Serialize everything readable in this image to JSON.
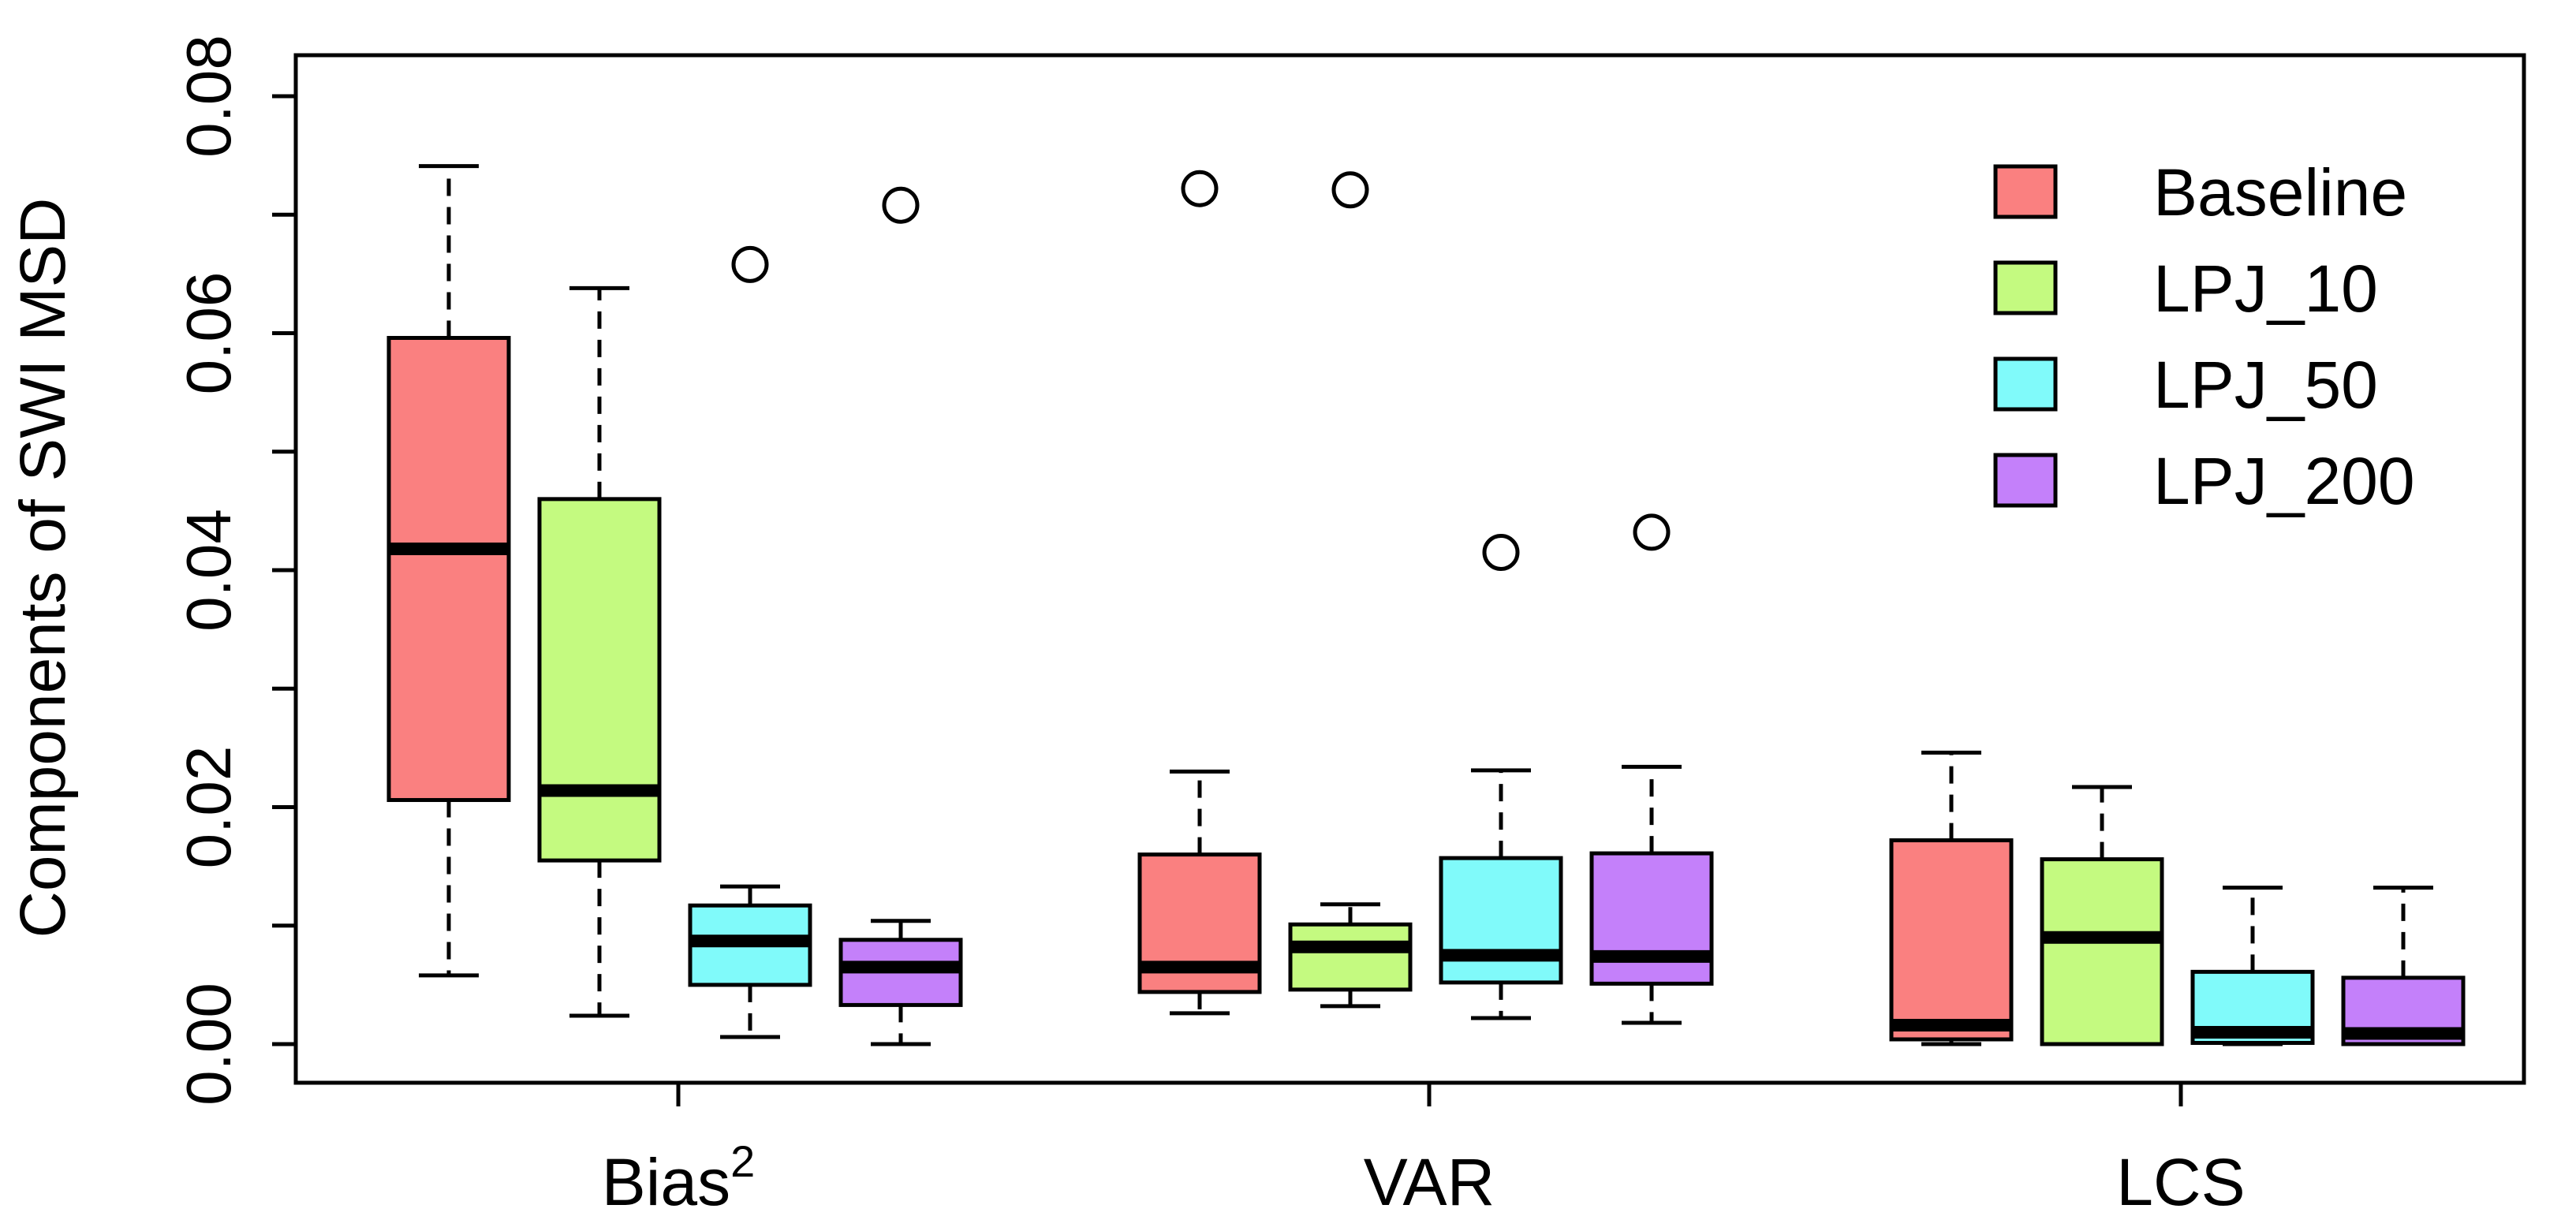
{
  "chart_data": {
    "type": "boxplot",
    "title": "",
    "xlabel": "",
    "ylabel": "Components of SWI MSD",
    "ylim": [
      0,
      0.08
    ],
    "yticks": [
      0.0,
      0.02,
      0.04,
      0.06,
      0.08
    ],
    "ytick_labels": [
      "0.00",
      "0.02",
      "0.04",
      "0.06",
      "0.08"
    ],
    "groups": [
      {
        "label_main": "Bias",
        "label_sup": "2"
      },
      {
        "label_main": "VAR",
        "label_sup": ""
      },
      {
        "label_main": "LCS",
        "label_sup": ""
      }
    ],
    "series": [
      {
        "name": "Baseline",
        "color": "#fa8080"
      },
      {
        "name": "LPJ_10",
        "color": "#c4fa80"
      },
      {
        "name": "LPJ_50",
        "color": "#80fafa"
      },
      {
        "name": "LPJ_200",
        "color": "#c480fa"
      }
    ],
    "boxes": [
      [
        {
          "min": 0.0058,
          "q1": 0.0206,
          "median": 0.0418,
          "q3": 0.0596,
          "max": 0.0741,
          "outliers": []
        },
        {
          "min": 0.0024,
          "q1": 0.0155,
          "median": 0.0214,
          "q3": 0.046,
          "max": 0.0638,
          "outliers": []
        },
        {
          "min": 0.0006,
          "q1": 0.005,
          "median": 0.0087,
          "q3": 0.0117,
          "max": 0.0133,
          "outliers": [
            0.0658
          ]
        },
        {
          "min": 0.0,
          "q1": 0.0033,
          "median": 0.0065,
          "q3": 0.0088,
          "max": 0.0104,
          "outliers": [
            0.0708
          ]
        }
      ],
      [
        {
          "min": 0.0026,
          "q1": 0.0044,
          "median": 0.0065,
          "q3": 0.016,
          "max": 0.023,
          "outliers": [
            0.0722
          ]
        },
        {
          "min": 0.0032,
          "q1": 0.0046,
          "median": 0.0082,
          "q3": 0.0101,
          "max": 0.0118,
          "outliers": [
            0.0721
          ]
        },
        {
          "min": 0.0022,
          "q1": 0.0052,
          "median": 0.0075,
          "q3": 0.0157,
          "max": 0.0231,
          "outliers": [
            0.0415
          ]
        },
        {
          "min": 0.0018,
          "q1": 0.0051,
          "median": 0.0074,
          "q3": 0.0161,
          "max": 0.0234,
          "outliers": [
            0.0432
          ]
        }
      ],
      [
        {
          "min": 0.0,
          "q1": 0.0004,
          "median": 0.0016,
          "q3": 0.0172,
          "max": 0.0246,
          "outliers": []
        },
        {
          "min": 0.0,
          "q1": 0.0,
          "median": 0.009,
          "q3": 0.0156,
          "max": 0.0217,
          "outliers": []
        },
        {
          "min": 0.0,
          "q1": 0.0001,
          "median": 0.001,
          "q3": 0.0061,
          "max": 0.0132,
          "outliers": []
        },
        {
          "min": 0.0,
          "q1": 0.0,
          "median": 0.0009,
          "q3": 0.0056,
          "max": 0.0132,
          "outliers": []
        }
      ]
    ],
    "legend_position": "top-right",
    "grid": false
  }
}
